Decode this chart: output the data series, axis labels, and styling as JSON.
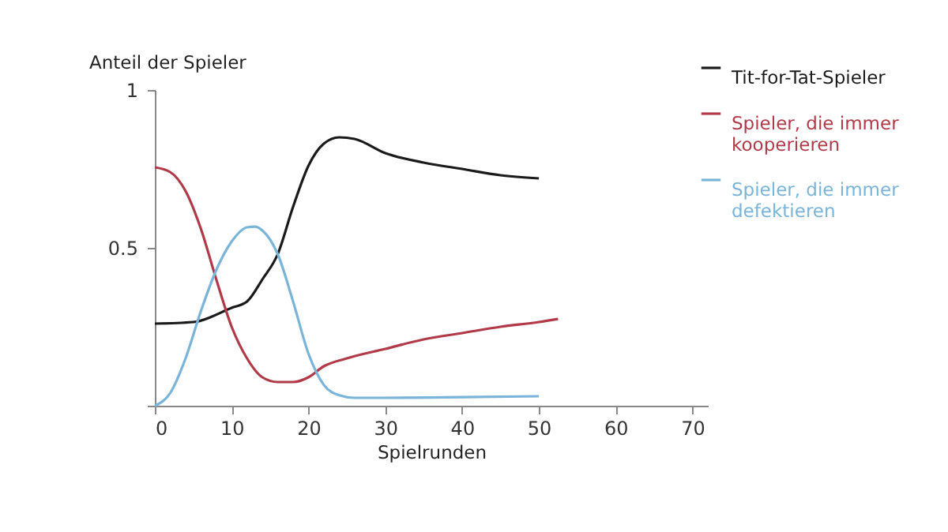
{
  "chart_data": {
    "type": "line",
    "xlabel": "Spielrunden",
    "ylabel": "Anteil der Spieler",
    "xlim": [
      0,
      72
    ],
    "xticks": [
      0,
      10,
      20,
      30,
      40,
      50,
      60,
      70
    ],
    "ylim": [
      0,
      1
    ],
    "yticks": [
      {
        "value": 0,
        "label": null
      },
      0.5,
      1
    ],
    "grid": false,
    "legend": "top right",
    "line_style": "solid",
    "marker": "none",
    "series": [
      {
        "name": "Tit-for-Tat-Spieler",
        "color": "#1a1a1a",
        "x": [
          0,
          5,
          10,
          12,
          14,
          16,
          18,
          20,
          22,
          24,
          26,
          30,
          35,
          40,
          45,
          50
        ],
        "values": [
          0.26,
          0.265,
          0.31,
          0.33,
          0.4,
          0.48,
          0.63,
          0.76,
          0.83,
          0.85,
          0.845,
          0.8,
          0.77,
          0.75,
          0.73,
          0.72
        ]
      },
      {
        "name": "Spieler, die immer kooperieren",
        "color": "#b03a48",
        "x": [
          0,
          2,
          4,
          6,
          8,
          10,
          12,
          14,
          16,
          18,
          20,
          22,
          25,
          30,
          35,
          40,
          45,
          50,
          52.5
        ],
        "values": [
          0.755,
          0.74,
          0.68,
          0.56,
          0.4,
          0.25,
          0.15,
          0.09,
          0.075,
          0.075,
          0.09,
          0.125,
          0.15,
          0.18,
          0.21,
          0.23,
          0.25,
          0.265,
          0.275
        ]
      },
      {
        "name": "Spieler, die immer defektieren",
        "color": "#7ab4d8",
        "x": [
          0,
          2,
          4,
          6,
          8,
          10,
          12,
          13,
          14,
          16,
          18,
          20,
          22,
          24,
          26,
          30,
          40,
          50
        ],
        "values": [
          0,
          0.04,
          0.15,
          0.3,
          0.43,
          0.52,
          0.565,
          0.567,
          0.555,
          0.48,
          0.33,
          0.165,
          0.066,
          0.033,
          0.025,
          0.025,
          0.027,
          0.03
        ]
      }
    ]
  }
}
